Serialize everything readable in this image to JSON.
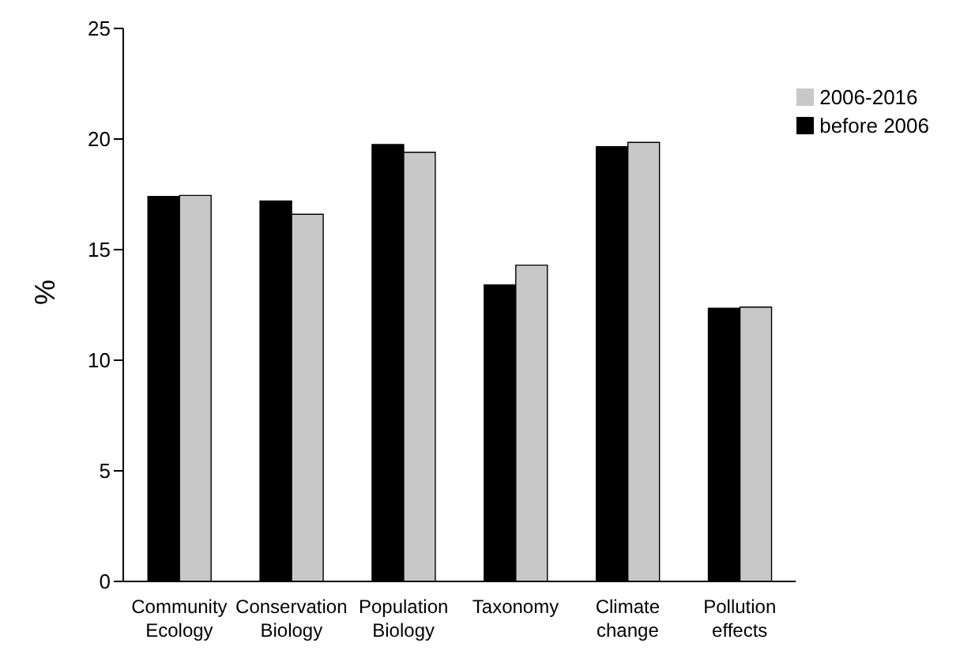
{
  "chart_data": {
    "type": "bar",
    "ylabel": "%",
    "categories": [
      "Community Ecology",
      "Conservation Biology",
      "Population Biology",
      "Taxonomy",
      "Climate change",
      "Pollution effects"
    ],
    "series": [
      {
        "name": "before 2006",
        "color": "#000000",
        "values": [
          17.4,
          17.2,
          19.75,
          13.4,
          19.65,
          12.35
        ]
      },
      {
        "name": "2006-2016",
        "color": "#c8c8c8",
        "values": [
          17.45,
          16.6,
          19.4,
          14.3,
          19.85,
          12.4
        ]
      }
    ],
    "ylim": [
      0,
      25
    ],
    "yticks": [
      0,
      5,
      10,
      15,
      20,
      25
    ],
    "grid": false,
    "legend": "top right"
  }
}
